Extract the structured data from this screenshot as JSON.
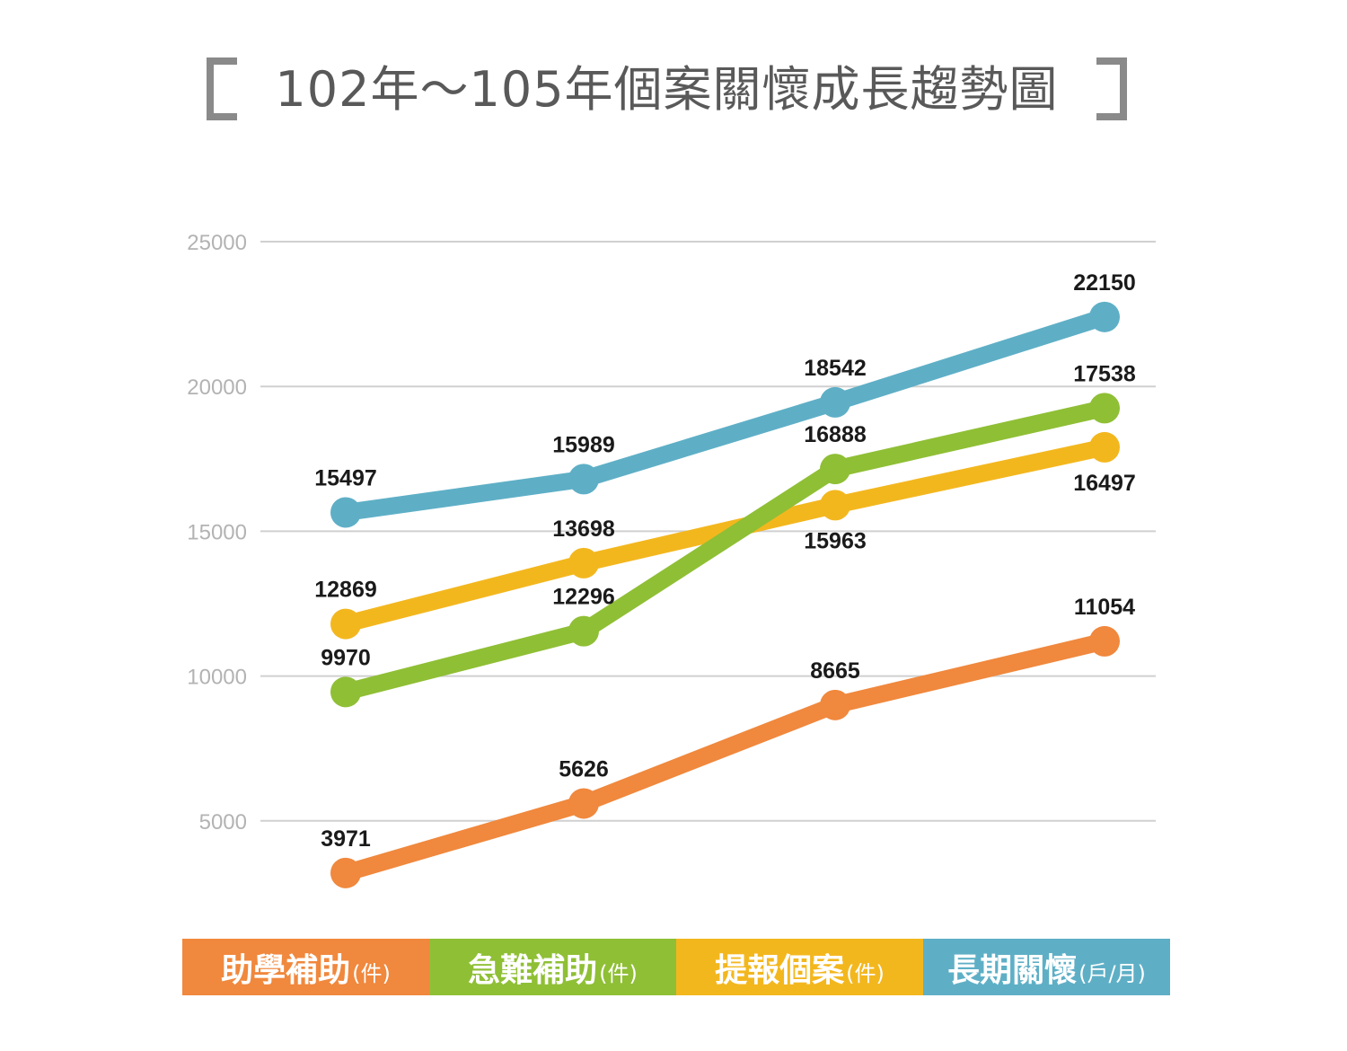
{
  "title": "102年～105年個案關懷成長趨勢圖",
  "chart_data": {
    "type": "line",
    "title": "102年～105年個案關懷成長趨勢圖",
    "categories": [
      "",
      "",
      "",
      ""
    ],
    "ylim": [
      0,
      25000
    ],
    "y_ticks": [
      5000,
      10000,
      15000,
      20000,
      25000
    ],
    "y_tick_labels": [
      "5000",
      "10000",
      "15000",
      "20000",
      "25000"
    ],
    "grid": true,
    "legend_position": "bottom",
    "series": [
      {
        "name": "助學補助",
        "unit": "(件)",
        "color": "#f0883d",
        "values": [
          3971,
          5626,
          8665,
          11054
        ],
        "plotted": [
          3200,
          5600,
          9000,
          11200
        ],
        "label_side": [
          "above",
          "above",
          "above",
          "above"
        ]
      },
      {
        "name": "急難補助",
        "unit": "(件)",
        "color": "#8fbf35",
        "values": [
          9970,
          12296,
          16888,
          17538
        ],
        "plotted": [
          9450,
          11550,
          17150,
          19250
        ],
        "label_side": [
          "above",
          "above",
          "above",
          "above"
        ]
      },
      {
        "name": "提報個案",
        "unit": "(件)",
        "color": "#f3b71e",
        "values": [
          12869,
          13698,
          15963,
          16497
        ],
        "plotted": [
          11800,
          13900,
          15900,
          17900
        ],
        "label_side": [
          "above",
          "above",
          "below",
          "below"
        ]
      },
      {
        "name": "長期關懷",
        "unit": "(戶/月)",
        "color": "#5eafc6",
        "values": [
          15497,
          15989,
          18542,
          22150
        ],
        "plotted": [
          15650,
          16800,
          19450,
          22400
        ],
        "label_side": [
          "above",
          "above",
          "above",
          "above"
        ]
      }
    ]
  }
}
